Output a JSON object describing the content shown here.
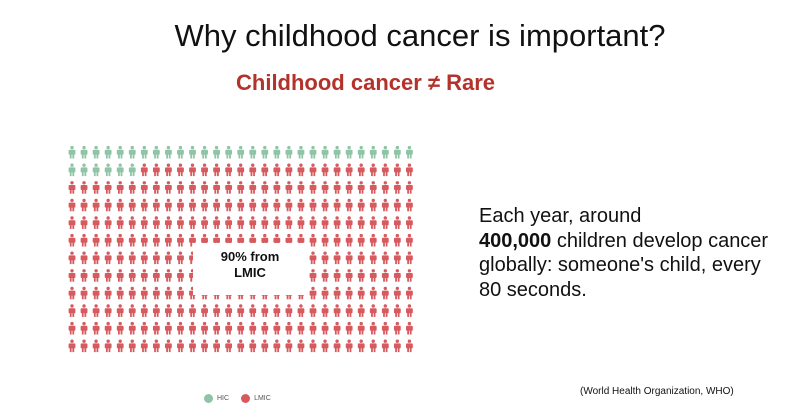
{
  "title": "Why childhood cancer is important?",
  "subtitle": "Childhood cancer ≠ Rare",
  "callout": {
    "line1": "90% from",
    "line2": "LMIC"
  },
  "body": {
    "before": "Each year, around",
    "bold": "400,000",
    "after": " children develop cancer globally: someone's child, every 80 seconds."
  },
  "source": "(World Health Organization, WHO)",
  "colors": {
    "HIC": "#8fc4a6",
    "LMIC": "#d65a5e",
    "subtitle": "#b3322b"
  },
  "chart_data": {
    "type": "pictogram",
    "icon": "person-icon",
    "categories": [
      "HIC",
      "LMIC"
    ],
    "values": [
      35,
      313
    ],
    "percent": [
      10,
      90
    ],
    "legend": [
      "HIC",
      "LMIC"
    ],
    "legend_position": "bottom",
    "annotation": "90% from LMIC"
  }
}
